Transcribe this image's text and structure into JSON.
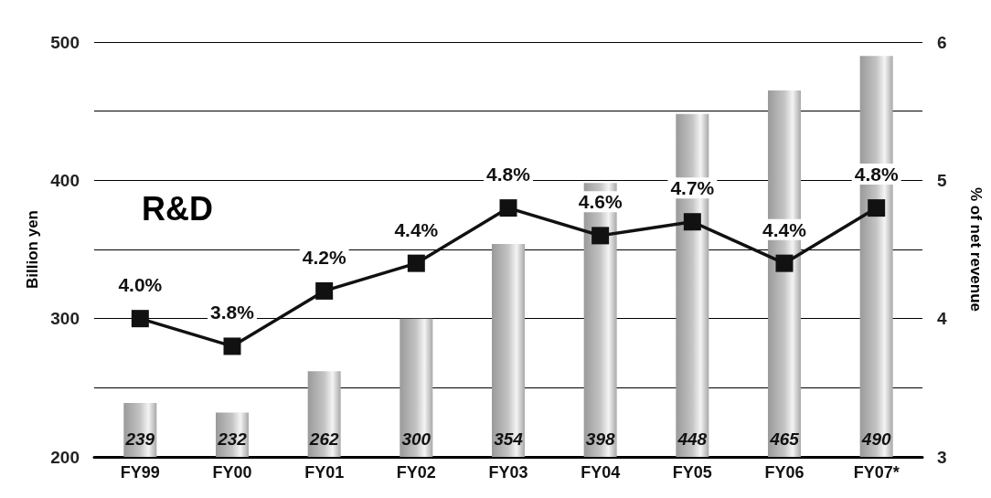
{
  "chart_data": {
    "type": "bar",
    "title": "R&D",
    "ylabel": "Billion yen",
    "y2label": "% of net revenue",
    "categories": [
      "FY99",
      "FY00",
      "FY01",
      "FY02",
      "FY03",
      "FY04",
      "FY05",
      "FY06",
      "FY07*"
    ],
    "series": [
      {
        "color": "#c4c4c4",
        "values": [
          239,
          232,
          262,
          300,
          354,
          398,
          448,
          465,
          490
        ],
        "value_labels": [
          "239",
          "232",
          "262",
          "300",
          "354",
          "398",
          "448",
          "465",
          "490"
        ]
      },
      {
        "type": "line",
        "axis": "y2",
        "color": "#111111",
        "values": [
          4.0,
          3.8,
          4.2,
          4.4,
          4.8,
          4.6,
          4.7,
          4.4,
          4.8
        ],
        "value_labels": [
          "4.0%",
          "3.8%",
          "4.2%",
          "4.4%",
          "4.8%",
          "4.6%",
          "4.7%",
          "4.4%",
          "4.8%"
        ]
      }
    ],
    "ylim": [
      200,
      500
    ],
    "yticks": [
      200,
      {
        "value": 250,
        "label": null
      },
      300,
      {
        "value": 350,
        "label": null
      },
      400,
      {
        "value": 450,
        "label": null
      },
      500
    ],
    "y2lim": [
      3,
      6
    ],
    "y2ticks": [
      3,
      4,
      5,
      6
    ],
    "grid": "y",
    "marker": "square",
    "line_style": "solid"
  }
}
